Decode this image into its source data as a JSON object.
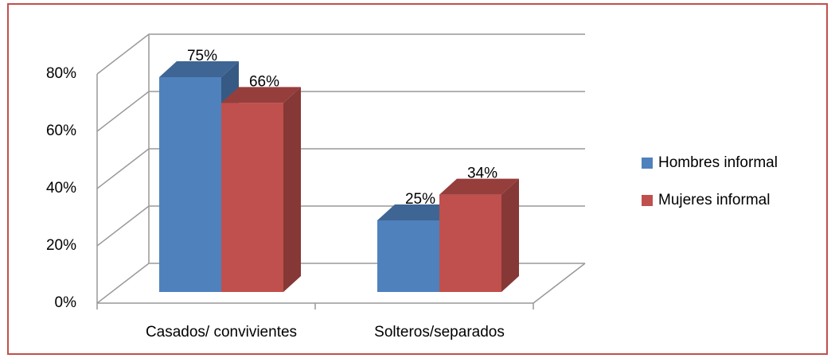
{
  "chart_data": {
    "type": "bar3d",
    "categories": [
      "Casados/ convivientes",
      "Solteros/separados"
    ],
    "series": [
      {
        "name": "Hombres informal",
        "color": "#4f81bd",
        "values": [
          75,
          25
        ],
        "value_labels": [
          "75%",
          "25%"
        ]
      },
      {
        "name": "Mujeres informal",
        "color": "#c0504d",
        "values": [
          66,
          34
        ],
        "value_labels": [
          "66%",
          "34%"
        ]
      }
    ],
    "ylim": [
      0,
      80
    ],
    "yticks": [
      {
        "value": 0,
        "label": "0%"
      },
      {
        "value": 20,
        "label": "20%"
      },
      {
        "value": 40,
        "label": "40%"
      },
      {
        "value": 60,
        "label": "60%"
      },
      {
        "value": 80,
        "label": "80%"
      }
    ],
    "grid": true,
    "legend": "right"
  }
}
